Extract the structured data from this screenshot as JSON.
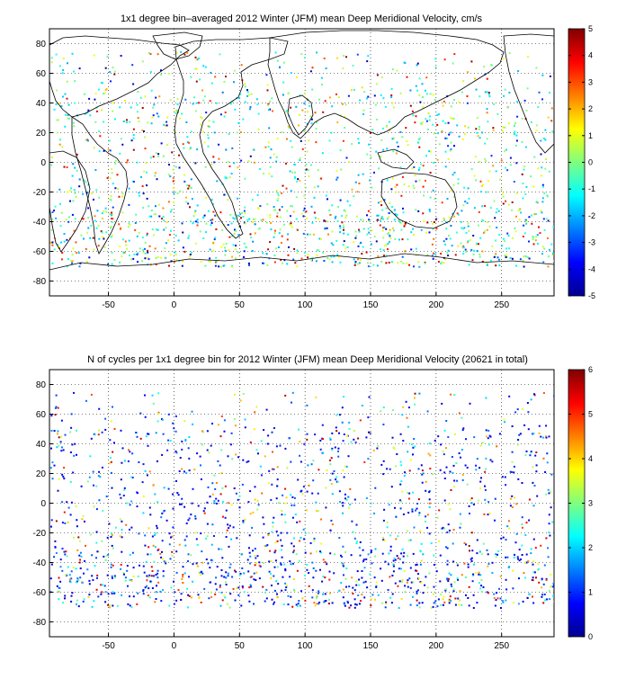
{
  "panels": [
    {
      "title": "1x1 degree bin–averaged 2012 Winter (JFM) mean Deep Meridional Velocity, cm/s",
      "xticks": [
        "-50",
        "0",
        "50",
        "100",
        "150",
        "200",
        "250"
      ],
      "yticks": [
        "80",
        "60",
        "40",
        "20",
        "0",
        "-20",
        "-40",
        "-60",
        "-80"
      ],
      "colorbar_ticks": [
        "5",
        "4",
        "3",
        "2",
        "1",
        "0",
        "-1",
        "-2",
        "-3",
        "-4",
        "-5"
      ],
      "colorbar_range": [
        -5,
        5
      ],
      "xlim": [
        -95,
        290
      ],
      "ylim": [
        -90,
        90
      ]
    },
    {
      "title": "N of cycles per 1x1 degree bin for 2012 Winter (JFM) mean Deep Meridional Velocity (20621 in total)",
      "xticks": [
        "-50",
        "0",
        "50",
        "100",
        "150",
        "200",
        "250"
      ],
      "yticks": [
        "80",
        "60",
        "40",
        "20",
        "0",
        "-20",
        "-40",
        "-60",
        "-80"
      ],
      "colorbar_ticks": [
        "6",
        "5",
        "4",
        "3",
        "2",
        "1",
        "0"
      ],
      "colorbar_range": [
        0,
        6
      ],
      "xlim": [
        -95,
        290
      ],
      "ylim": [
        -90,
        90
      ]
    }
  ],
  "colors": {
    "axis": "#000000",
    "grid": "#000000",
    "coast": "#000000"
  }
}
